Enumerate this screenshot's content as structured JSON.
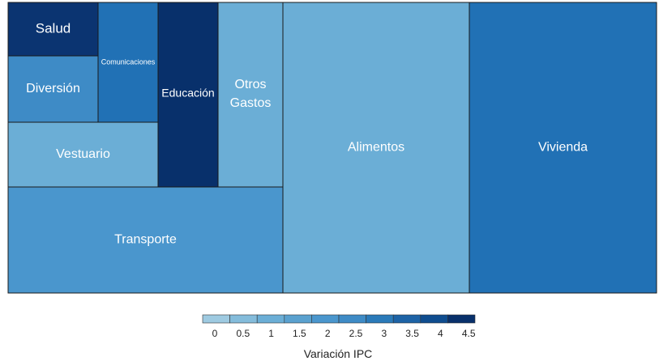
{
  "chart_data": {
    "type": "treemap",
    "color_var": "Variación IPC",
    "tiles": [
      {
        "label": "Salud",
        "color": "#0b3471"
      },
      {
        "label": "Comunicaciones",
        "color": "#2171b5"
      },
      {
        "label": "Diversión",
        "color": "#3e8bc6"
      },
      {
        "label": "Educación",
        "color": "#08306b"
      },
      {
        "label": "Otros Gastos",
        "color": "#6baed6"
      },
      {
        "label": "Vestuario",
        "color": "#6baed6"
      },
      {
        "label": "Transporte",
        "color": "#4a96cd"
      },
      {
        "label": "Alimentos",
        "color": "#6baed6"
      },
      {
        "label": "Vivienda",
        "color": "#2171b5"
      }
    ],
    "legend": {
      "title": "Variación IPC",
      "ticks": [
        "0",
        "0.5",
        "1",
        "1.5",
        "2",
        "2.5",
        "3",
        "3.5",
        "4",
        "4.5"
      ],
      "colors": [
        "#9ecae1",
        "#84bcdb",
        "#6baed6",
        "#5aa1cf",
        "#4a96cd",
        "#3e8bc6",
        "#2a7ab9",
        "#1d63a6",
        "#0f4d8f",
        "#08306b"
      ]
    }
  }
}
